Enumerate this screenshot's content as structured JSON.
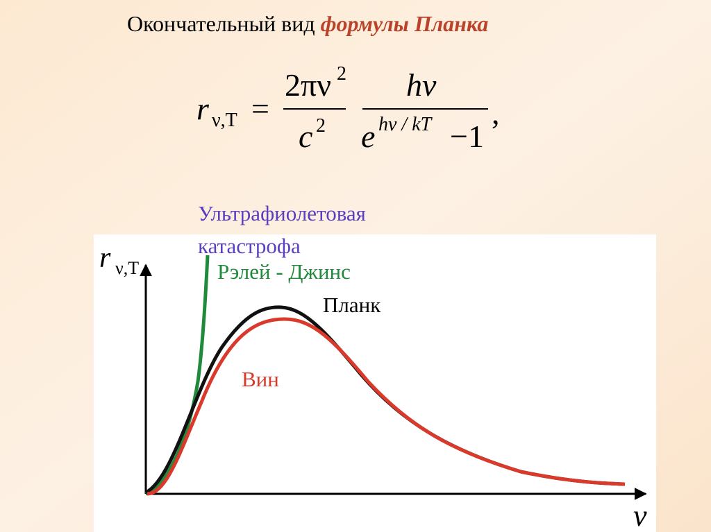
{
  "title": {
    "plain": "Окончательный вид",
    "emphasis": "формулы Планка"
  },
  "formula": {
    "lhs": "r",
    "lhs_sub": "ν,T",
    "equals": "=",
    "num1": "2πν",
    "num1_sup": "2",
    "den1": "c",
    "den1_sup": "2",
    "num2": "hν",
    "den2_base": "e",
    "den2_sup": "hν / kT",
    "den2_rest": "−1",
    "comma": ","
  },
  "graph": {
    "y_axis": "r",
    "y_axis_sub": "ν,T",
    "x_axis": "ν",
    "labels": {
      "uv_line1": "Ультрафиолетовая",
      "uv_line2": "катастрофа",
      "rayleigh_jeans": "Рэлей - Джинс",
      "planck": "Планк",
      "wien": "Вин"
    }
  }
}
